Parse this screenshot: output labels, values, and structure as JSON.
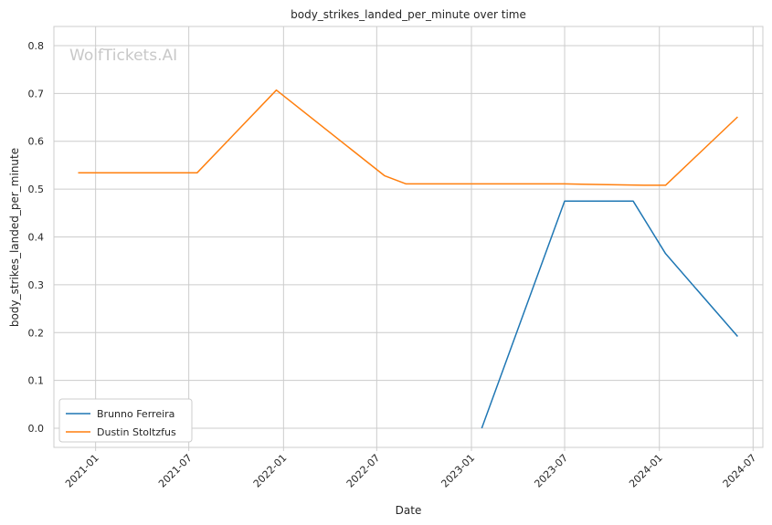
{
  "chart_data": {
    "type": "line",
    "title": "body_strikes_landed_per_minute over time",
    "xlabel": "Date",
    "ylabel": "body_strikes_landed_per_minute",
    "watermark": "WolfTickets.AI",
    "x_ticks": [
      "2021-01",
      "2021-07",
      "2022-01",
      "2022-07",
      "2023-01",
      "2023-07",
      "2024-01",
      "2024-07"
    ],
    "y_ticks": [
      0.0,
      0.1,
      0.2,
      0.3,
      0.4,
      0.5,
      0.6,
      0.7,
      0.8
    ],
    "y_tick_labels": [
      "0.0",
      "0.1",
      "0.2",
      "0.3",
      "0.4",
      "0.5",
      "0.6",
      "0.7",
      "0.8"
    ],
    "xlim": [
      "2020-10-12",
      "2024-07-20"
    ],
    "ylim": [
      -0.04,
      0.84
    ],
    "grid": true,
    "legend_position": "lower-left",
    "series": [
      {
        "name": "Brunno Ferreira",
        "color": "#1f77b4",
        "points": [
          {
            "x": "2023-01-21",
            "y": 0.0
          },
          {
            "x": "2023-07-01",
            "y": 0.475
          },
          {
            "x": "2023-11-11",
            "y": 0.475
          },
          {
            "x": "2024-01-13",
            "y": 0.365
          },
          {
            "x": "2024-06-01",
            "y": 0.192
          }
        ]
      },
      {
        "name": "Dustin Stoltzfus",
        "color": "#ff7f0e",
        "points": [
          {
            "x": "2020-11-28",
            "y": 0.534
          },
          {
            "x": "2021-07-17",
            "y": 0.534
          },
          {
            "x": "2021-12-18",
            "y": 0.707
          },
          {
            "x": "2022-07-16",
            "y": 0.528
          },
          {
            "x": "2022-08-27",
            "y": 0.511
          },
          {
            "x": "2023-07-01",
            "y": 0.511
          },
          {
            "x": "2023-12-02",
            "y": 0.508
          },
          {
            "x": "2024-01-13",
            "y": 0.508
          },
          {
            "x": "2024-06-01",
            "y": 0.651
          }
        ]
      }
    ]
  }
}
